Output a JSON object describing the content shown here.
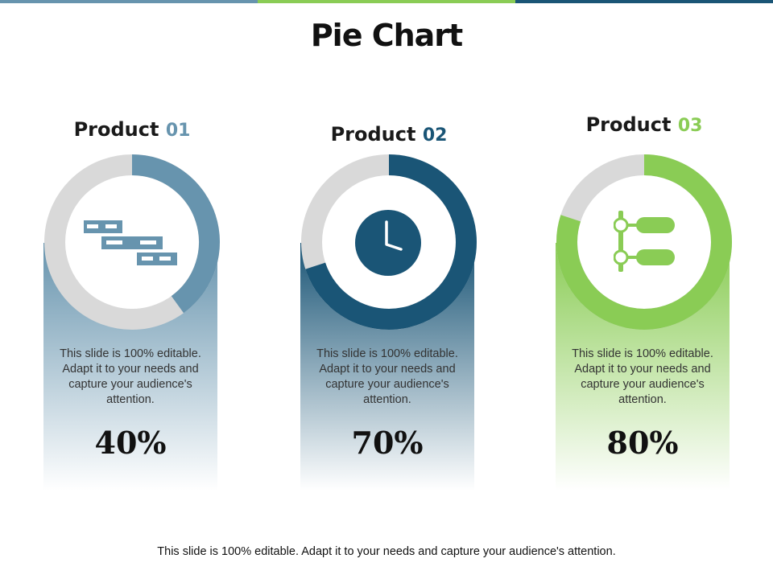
{
  "title": "Pie Chart",
  "footer": "This slide is 100% editable. Adapt it to your needs and capture your audience's attention.",
  "colors": {
    "product1": "#6794ae",
    "product2": "#1a5576",
    "product3": "#8acc55",
    "track": "#d9d9d9",
    "topbar": [
      "#6794ae",
      "#8acc55",
      "#1a5576"
    ]
  },
  "products": [
    {
      "name": "Product",
      "number": "01",
      "description": "This slide is 100% editable. Adapt it to your needs and capture your audience's attention.",
      "percent_label": "40%",
      "icon": "gantt-icon"
    },
    {
      "name": "Product",
      "number": "02",
      "description": "This slide is 100% editable. Adapt it to your needs and capture your audience's attention.",
      "percent_label": "70%",
      "icon": "clock-icon"
    },
    {
      "name": "Product",
      "number": "03",
      "description": "This slide is 100% editable. Adapt it to your needs and capture your audience's attention.",
      "percent_label": "80%",
      "icon": "hierarchy-icon"
    }
  ],
  "chart_data": {
    "type": "pie",
    "categories": [
      "Product 01",
      "Product 02",
      "Product 03"
    ],
    "values": [
      40,
      70,
      80
    ]
  }
}
